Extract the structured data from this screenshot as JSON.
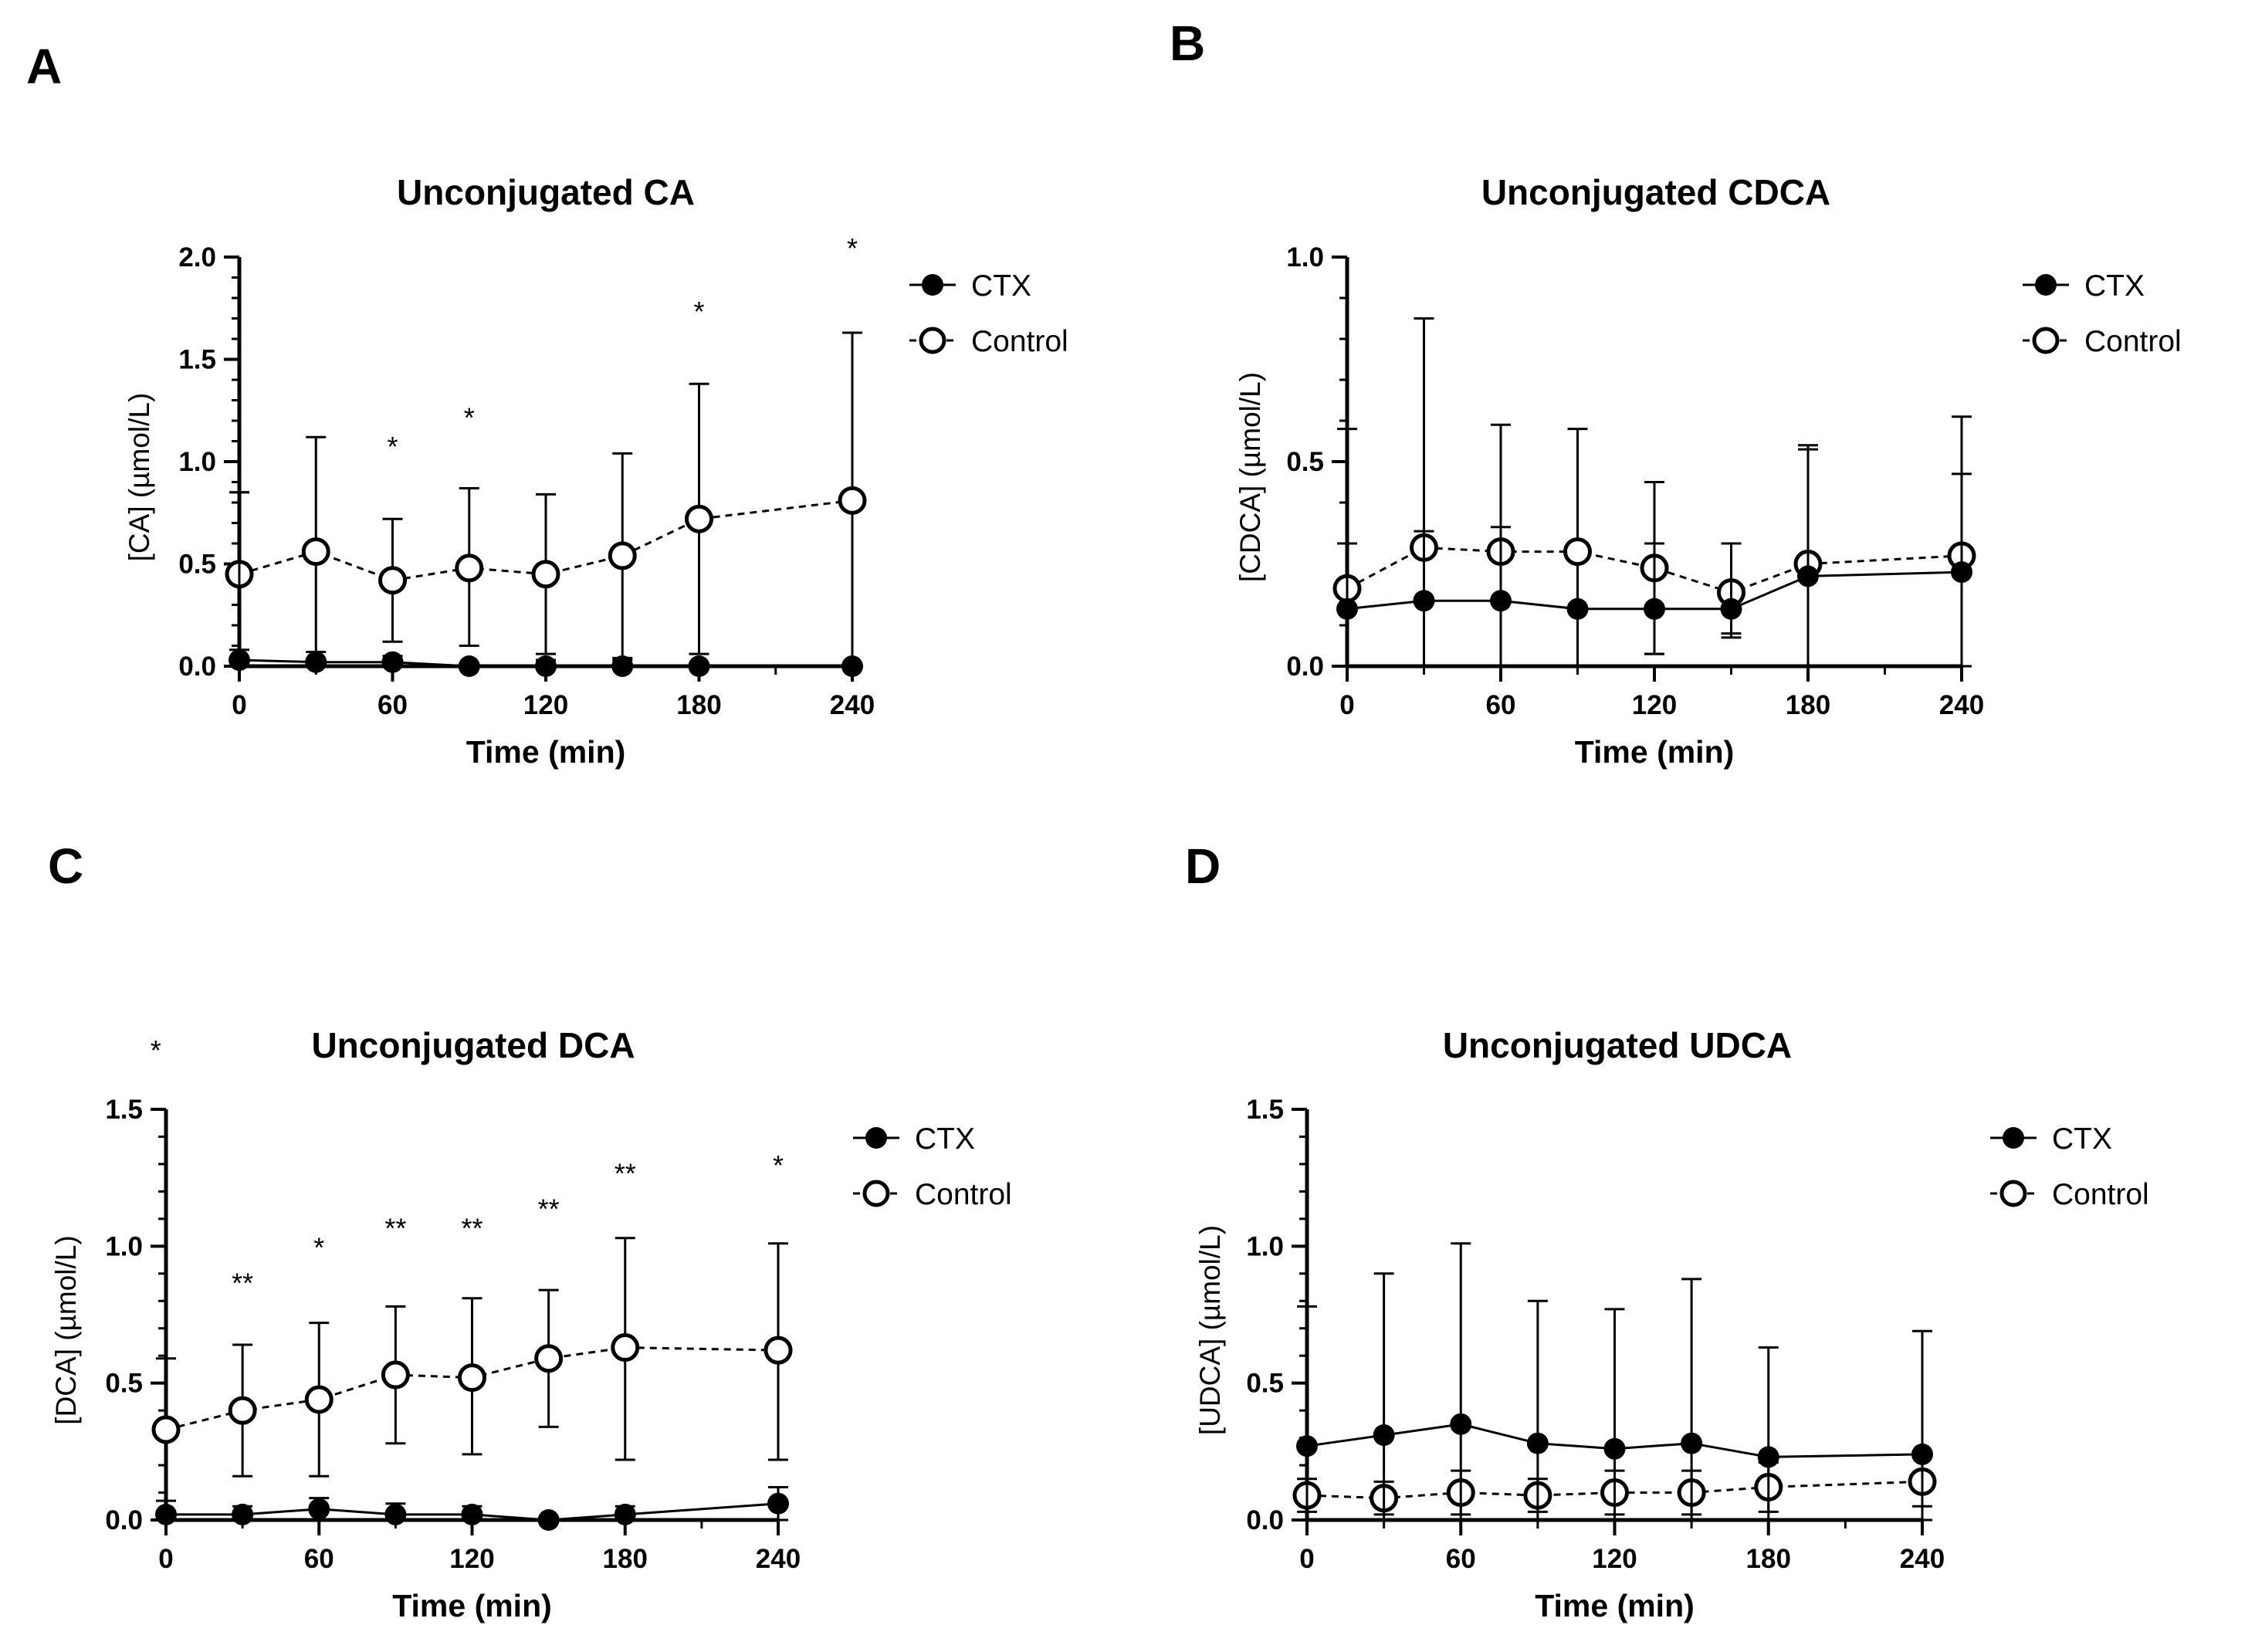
{
  "chart_data": [
    {
      "panel": "A",
      "type": "line",
      "title": "Unconjugated CA",
      "xlabel": "Time (min)",
      "ylabel": "[CA] (µmol/L)",
      "xlim": [
        0,
        240
      ],
      "ylim": [
        0,
        2.0
      ],
      "xticks": [
        "0",
        "60",
        "120",
        "180",
        "240"
      ],
      "yticks": [
        "0.0",
        "0.5",
        "1.0",
        "1.5",
        "2.0"
      ],
      "x": [
        0,
        30,
        60,
        90,
        120,
        150,
        180,
        240
      ],
      "series": [
        {
          "name": "CTX",
          "style": "solid",
          "marker": "filled",
          "values": [
            0.03,
            0.02,
            0.02,
            0.0,
            0.0,
            0.0,
            0.0,
            0.0
          ],
          "err_upper": [
            0.85,
            0.07,
            0.05,
            0.0,
            0.03,
            0.03,
            0.0,
            0.0
          ],
          "err_lower": [
            0.03,
            0.02,
            0.02,
            0.0,
            0.0,
            0.0,
            0.0,
            0.0
          ]
        },
        {
          "name": "Control",
          "style": "dashed",
          "marker": "open",
          "values": [
            0.45,
            0.56,
            0.42,
            0.48,
            0.45,
            0.54,
            0.72,
            0.81
          ],
          "err_upper": [
            0.85,
            1.12,
            0.72,
            0.87,
            0.84,
            1.04,
            1.38,
            1.63
          ],
          "err_lower": [
            0.08,
            0.0,
            0.12,
            0.1,
            0.06,
            0.04,
            0.06,
            0.0
          ]
        }
      ],
      "annotations": [
        {
          "x": 60,
          "y": 1.08,
          "text": "*"
        },
        {
          "x": 90,
          "y": 1.22,
          "text": "*"
        },
        {
          "x": 180,
          "y": 1.74,
          "text": "*"
        },
        {
          "x": 240,
          "y": 2.05,
          "text": "*"
        }
      ],
      "legend": "top-right"
    },
    {
      "panel": "B",
      "type": "line",
      "title": "Unconjugated CDCA",
      "xlabel": "Time (min)",
      "ylabel": "[CDCA] (µmol/L)",
      "xlim": [
        0,
        240
      ],
      "ylim": [
        0,
        1.0
      ],
      "xticks": [
        "0",
        "60",
        "120",
        "180",
        "240"
      ],
      "yticks": [
        "0.0",
        "0.5",
        "1.0"
      ],
      "x": [
        0,
        30,
        60,
        90,
        120,
        150,
        180,
        240
      ],
      "series": [
        {
          "name": "CTX",
          "style": "solid",
          "marker": "filled",
          "values": [
            0.14,
            0.16,
            0.16,
            0.14,
            0.14,
            0.14,
            0.22,
            0.23
          ],
          "err_upper": [
            0.58,
            0.33,
            0.34,
            0.14,
            0.3,
            0.3,
            0.53,
            0.47
          ],
          "err_lower": [
            0.0,
            0.0,
            0.0,
            0.0,
            0.03,
            0.07,
            0.0,
            0.0
          ]
        },
        {
          "name": "Control",
          "style": "dashed",
          "marker": "open",
          "values": [
            0.19,
            0.29,
            0.28,
            0.28,
            0.24,
            0.18,
            0.25,
            0.27
          ],
          "err_upper": [
            0.3,
            0.85,
            0.59,
            0.58,
            0.45,
            0.3,
            0.54,
            0.61
          ],
          "err_lower": [
            0.0,
            0.0,
            0.0,
            0.0,
            0.03,
            0.08,
            0.0,
            0.0
          ]
        }
      ],
      "annotations": [],
      "legend": "top-right"
    },
    {
      "panel": "C",
      "type": "line",
      "title": "Unconjugated DCA",
      "xlabel": "Time (min)",
      "ylabel": "[DCA] (µmol/L)",
      "xlim": [
        0,
        240
      ],
      "ylim": [
        0,
        1.5
      ],
      "xticks": [
        "0",
        "60",
        "120",
        "180",
        "240"
      ],
      "yticks": [
        "0.0",
        "0.5",
        "1.0",
        "1.5"
      ],
      "x": [
        0,
        30,
        60,
        90,
        120,
        150,
        180,
        240
      ],
      "series": [
        {
          "name": "CTX",
          "style": "solid",
          "marker": "filled",
          "values": [
            0.02,
            0.02,
            0.04,
            0.02,
            0.02,
            0.0,
            0.02,
            0.06
          ],
          "err_upper": [
            0.07,
            0.05,
            0.08,
            0.06,
            0.05,
            0.0,
            0.05,
            0.12
          ],
          "err_lower": [
            0.0,
            0.0,
            0.0,
            0.0,
            0.0,
            0.0,
            0.0,
            0.0
          ]
        },
        {
          "name": "Control",
          "style": "dashed",
          "marker": "open",
          "values": [
            0.33,
            0.4,
            0.44,
            0.53,
            0.52,
            0.59,
            0.63,
            0.62
          ],
          "err_upper": [
            0.59,
            0.64,
            0.72,
            0.78,
            0.81,
            0.84,
            1.03,
            1.01
          ],
          "err_lower": [
            0.0,
            0.16,
            0.16,
            0.28,
            0.24,
            0.34,
            0.22,
            0.22
          ]
        }
      ],
      "annotations": [
        {
          "x": -4,
          "y": 1.72,
          "text": "*"
        },
        {
          "x": 30,
          "y": 0.87,
          "text": "**"
        },
        {
          "x": 60,
          "y": 1.0,
          "text": "*"
        },
        {
          "x": 90,
          "y": 1.07,
          "text": "**"
        },
        {
          "x": 120,
          "y": 1.07,
          "text": "**"
        },
        {
          "x": 150,
          "y": 1.14,
          "text": "**"
        },
        {
          "x": 180,
          "y": 1.27,
          "text": "**"
        },
        {
          "x": 240,
          "y": 1.3,
          "text": "*"
        }
      ],
      "legend": "top-right"
    },
    {
      "panel": "D",
      "type": "line",
      "title": "Unconjugated UDCA",
      "xlabel": "Time (min)",
      "ylabel": "[UDCA] (µmol/L)",
      "xlim": [
        0,
        240
      ],
      "ylim": [
        0,
        1.5
      ],
      "xticks": [
        "0",
        "60",
        "120",
        "180",
        "240"
      ],
      "yticks": [
        "0.0",
        "0.5",
        "1.0",
        "1.5"
      ],
      "x": [
        0,
        30,
        60,
        90,
        120,
        150,
        180,
        240
      ],
      "series": [
        {
          "name": "CTX",
          "style": "solid",
          "marker": "filled",
          "values": [
            0.27,
            0.31,
            0.35,
            0.28,
            0.26,
            0.28,
            0.23,
            0.24
          ],
          "err_upper": [
            0.78,
            0.9,
            1.01,
            0.8,
            0.77,
            0.88,
            0.63,
            0.69
          ],
          "err_lower": [
            0.0,
            0.0,
            0.0,
            0.0,
            0.0,
            0.0,
            0.0,
            0.0
          ]
        },
        {
          "name": "Control",
          "style": "dashed",
          "marker": "open",
          "values": [
            0.09,
            0.08,
            0.1,
            0.09,
            0.1,
            0.1,
            0.12,
            0.14
          ],
          "err_upper": [
            0.15,
            0.14,
            0.18,
            0.15,
            0.18,
            0.18,
            0.21,
            0.23
          ],
          "err_lower": [
            0.03,
            0.02,
            0.02,
            0.03,
            0.02,
            0.02,
            0.03,
            0.05
          ]
        }
      ],
      "annotations": [],
      "legend": "top-right"
    }
  ]
}
